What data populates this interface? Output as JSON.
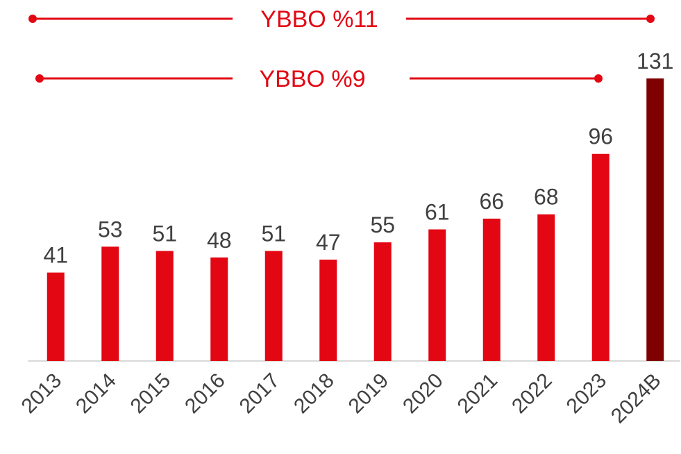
{
  "chart_data": {
    "type": "bar",
    "categories": [
      "2013",
      "2014",
      "2015",
      "2016",
      "2017",
      "2018",
      "2019",
      "2020",
      "2021",
      "2022",
      "2023",
      "2024B"
    ],
    "values": [
      41,
      53,
      51,
      48,
      51,
      47,
      55,
      61,
      66,
      68,
      96,
      131
    ],
    "colors": [
      "#e30613",
      "#e30613",
      "#e30613",
      "#e30613",
      "#e30613",
      "#e30613",
      "#e30613",
      "#e30613",
      "#e30613",
      "#e30613",
      "#e30613",
      "#7f0000"
    ],
    "annotations": [
      "YBBO %11",
      "YBBO %9"
    ]
  }
}
